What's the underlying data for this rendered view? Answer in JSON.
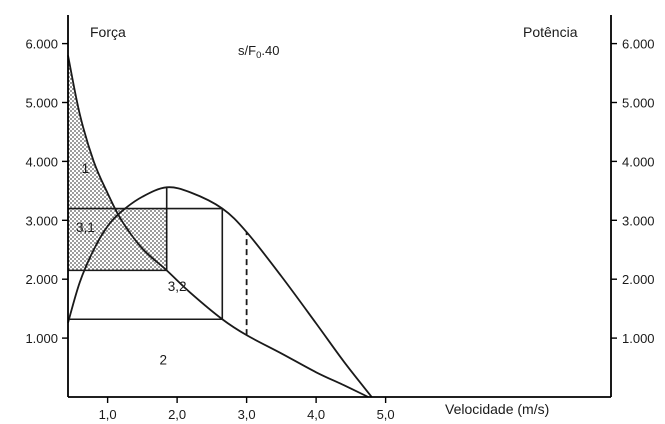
{
  "chart_data": {
    "type": "line",
    "title": "",
    "y_left_label": "Força",
    "y_right_label": "Potência",
    "annotation": {
      "main": "s/F",
      "sub": "0",
      "rest": ".40"
    },
    "xlabel": "Velocidade (m/s)",
    "xlim": [
      0.43,
      5.0
    ],
    "ylim": [
      0,
      6500
    ],
    "grid": false,
    "x_ticks": [
      {
        "value": 1.0,
        "label": "1,0"
      },
      {
        "value": 2.0,
        "label": "2,0"
      },
      {
        "value": 3.0,
        "label": "3,0"
      },
      {
        "value": 4.0,
        "label": "4,0"
      },
      {
        "value": 5.0,
        "label": "5,0"
      }
    ],
    "y_ticks": [
      {
        "value": 1000,
        "label": "1.000"
      },
      {
        "value": 2000,
        "label": "2.000"
      },
      {
        "value": 3000,
        "label": "3.000"
      },
      {
        "value": 4000,
        "label": "4.000"
      },
      {
        "value": 5000,
        "label": "5.000"
      },
      {
        "value": 6000,
        "label": "6.000"
      }
    ],
    "series": [
      {
        "role": "force-velocity",
        "points": [
          [
            0.43,
            5800
          ],
          [
            0.6,
            4800
          ],
          [
            0.8,
            4000
          ],
          [
            1.0,
            3460
          ],
          [
            1.2,
            3000
          ],
          [
            1.5,
            2520
          ],
          [
            1.85,
            2150
          ],
          [
            2.2,
            1760
          ],
          [
            2.65,
            1320
          ],
          [
            3.0,
            1050
          ],
          [
            3.5,
            740
          ],
          [
            4.0,
            420
          ],
          [
            4.4,
            200
          ],
          [
            4.75,
            0
          ]
        ]
      },
      {
        "role": "power-velocity",
        "points": [
          [
            0.43,
            1260
          ],
          [
            0.6,
            1950
          ],
          [
            0.8,
            2500
          ],
          [
            1.0,
            2900
          ],
          [
            1.2,
            3150
          ],
          [
            1.5,
            3400
          ],
          [
            1.85,
            3560
          ],
          [
            2.2,
            3470
          ],
          [
            2.65,
            3200
          ],
          [
            3.0,
            2800
          ],
          [
            3.5,
            2050
          ],
          [
            4.0,
            1250
          ],
          [
            4.4,
            600
          ],
          [
            4.8,
            0
          ]
        ]
      }
    ],
    "regions": [
      {
        "label": "1",
        "x": 0.68,
        "y": 3800
      },
      {
        "label": "3,1",
        "x": 0.68,
        "y": 2800
      },
      {
        "label": "3,2",
        "x": 2.0,
        "y": 1800
      },
      {
        "label": "2",
        "x": 1.8,
        "y": 550
      }
    ],
    "lines": [
      {
        "x1": 0.43,
        "y1": 3200,
        "x2": 2.65,
        "y2": 3200
      },
      {
        "x1": 0.43,
        "y1": 2150,
        "x2": 1.85,
        "y2": 2150
      },
      {
        "x1": 0.43,
        "y1": 1320,
        "x2": 2.65,
        "y2": 1320
      },
      {
        "x1": 1.85,
        "y1": 2150,
        "x2": 1.85,
        "y2": 3560
      },
      {
        "x1": 2.65,
        "y1": 1320,
        "x2": 2.65,
        "y2": 3200
      }
    ],
    "dashed_lines": [
      {
        "x1": 3.0,
        "y1": 1050,
        "x2": 3.0,
        "y2": 2800
      }
    ],
    "shaded_regions": [
      {
        "x1": 0.43,
        "y1": 2150,
        "x2": 1.85,
        "y2": 3200
      }
    ]
  }
}
